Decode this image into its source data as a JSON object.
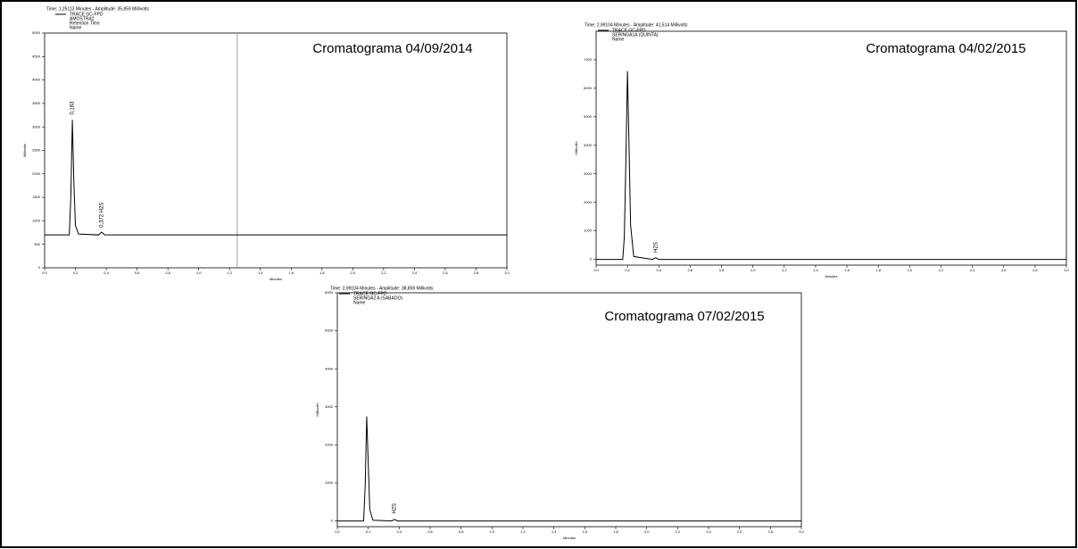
{
  "chart_data": [
    {
      "type": "line",
      "title": "Cromatograma 04/09/2014",
      "header": "Time: 1,25113 Minutes - Amplitude: 35,859 Millivolts",
      "legend_lines": [
        "AMOSTRA2",
        "Retention Time",
        "Name"
      ],
      "xlabel": "Minutes",
      "ylabel": "Millivolts",
      "series": [
        {
          "name": "TRACE GC-FPD",
          "color": "#000000",
          "x": [
            0.0,
            0.16,
            0.17,
            0.18,
            0.19,
            0.2,
            0.22,
            0.35,
            0.37,
            0.39,
            3.0
          ],
          "values": [
            700,
            700,
            1500,
            3150,
            1800,
            900,
            720,
            700,
            760,
            700,
            700
          ]
        }
      ],
      "annotations": [
        {
          "text": "0,183",
          "x": 0.18,
          "y": 3200
        },
        {
          "text": "0,372 H2S",
          "x": 0.37,
          "y": 800
        }
      ],
      "cursor": 1.25,
      "xlim": [
        0,
        3.0
      ],
      "ylim": [
        0,
        5000
      ],
      "xticks": [
        {
          "value": 0,
          "label": "0,0"
        },
        {
          "value": 0.2,
          "label": "0,2"
        },
        {
          "value": 0.4,
          "label": "0,4"
        },
        {
          "value": 0.6,
          "label": "0,6"
        },
        {
          "value": 0.8,
          "label": "0,8"
        },
        {
          "value": 1.0,
          "label": "1,0"
        },
        {
          "value": 1.2,
          "label": "1,2"
        },
        {
          "value": 1.4,
          "label": "1,4"
        },
        {
          "value": 1.6,
          "label": "1,6"
        },
        {
          "value": 1.8,
          "label": "1,8"
        },
        {
          "value": 2.0,
          "label": "2,0"
        },
        {
          "value": 2.2,
          "label": "2,2"
        },
        {
          "value": 2.4,
          "label": "2,4"
        },
        {
          "value": 2.6,
          "label": "2,6"
        },
        {
          "value": 2.8,
          "label": "2,8"
        },
        {
          "value": 3.0,
          "label": "3,0"
        }
      ],
      "yticks": [
        0,
        500,
        1000,
        1500,
        2000,
        2500,
        3000,
        3500,
        4000,
        4500,
        5000
      ]
    },
    {
      "type": "line",
      "title": "Cromatograma 04/02/2015",
      "header": "Time: 2,99104 Minutes - Amplitude: 41,514 Millivolts",
      "legend_lines": [
        "SERINGA1A (QUINTA)",
        "Name"
      ],
      "xlabel": "Minutes",
      "ylabel": "Millivolts",
      "series": [
        {
          "name": "TRACE GC-FPD",
          "color": "#000000",
          "x": [
            0.0,
            0.17,
            0.18,
            0.19,
            0.2,
            0.21,
            0.22,
            0.24,
            0.36,
            0.38,
            0.4,
            3.0
          ],
          "values": [
            0,
            0,
            800,
            3500,
            6600,
            4000,
            1200,
            100,
            0,
            60,
            0,
            0
          ]
        }
      ],
      "annotations": [
        {
          "text": "H2S",
          "x": 0.38,
          "y": 150
        }
      ],
      "xlim": [
        0,
        3.0
      ],
      "ylim": [
        -200,
        8000
      ],
      "xticks": [
        {
          "value": 0,
          "label": "0,0"
        },
        {
          "value": 0.2,
          "label": "0,2"
        },
        {
          "value": 0.4,
          "label": "0,4"
        },
        {
          "value": 0.6,
          "label": "0,6"
        },
        {
          "value": 0.8,
          "label": "0,8"
        },
        {
          "value": 1.0,
          "label": "1,0"
        },
        {
          "value": 1.2,
          "label": "1,2"
        },
        {
          "value": 1.4,
          "label": "1,4"
        },
        {
          "value": 1.6,
          "label": "1,6"
        },
        {
          "value": 1.8,
          "label": "1,8"
        },
        {
          "value": 2.0,
          "label": "2,0"
        },
        {
          "value": 2.2,
          "label": "2,2"
        },
        {
          "value": 2.4,
          "label": "2,4"
        },
        {
          "value": 2.6,
          "label": "2,6"
        },
        {
          "value": 2.8,
          "label": "2,8"
        },
        {
          "value": 3.0,
          "label": "3,0"
        }
      ],
      "yticks": [
        0,
        1000,
        2000,
        3000,
        4000,
        5000,
        6000,
        7000
      ]
    },
    {
      "type": "line",
      "title": "Cromatograma 07/02/2015",
      "header": "Time: 2,99104 Minutes - Amplitude: 38,859 Millivolts",
      "legend_lines": [
        "SERINGA2 A (SABADO)",
        "Name"
      ],
      "xlabel": "Minutes",
      "ylabel": "Millivolts",
      "series": [
        {
          "name": "TRACE GC-FPD",
          "color": "#000000",
          "x": [
            0.0,
            0.17,
            0.18,
            0.19,
            0.2,
            0.21,
            0.23,
            0.35,
            0.37,
            0.39,
            3.0
          ],
          "values": [
            0,
            0,
            900,
            2750,
            1500,
            300,
            20,
            0,
            40,
            0,
            0
          ]
        }
      ],
      "annotations": [
        {
          "text": "H2S",
          "x": 0.37,
          "y": 120
        }
      ],
      "xlim": [
        0,
        3.0
      ],
      "ylim": [
        -150,
        6000
      ],
      "xticks": [
        {
          "value": 0,
          "label": "0,0"
        },
        {
          "value": 0.2,
          "label": "0,2"
        },
        {
          "value": 0.4,
          "label": "0,4"
        },
        {
          "value": 0.6,
          "label": "0,6"
        },
        {
          "value": 0.8,
          "label": "0,8"
        },
        {
          "value": 1.0,
          "label": "1,0"
        },
        {
          "value": 1.2,
          "label": "1,2"
        },
        {
          "value": 1.4,
          "label": "1,4"
        },
        {
          "value": 1.6,
          "label": "1,6"
        },
        {
          "value": 1.8,
          "label": "1,8"
        },
        {
          "value": 2.0,
          "label": "2,0"
        },
        {
          "value": 2.2,
          "label": "2,2"
        },
        {
          "value": 2.4,
          "label": "2,4"
        },
        {
          "value": 2.6,
          "label": "2,6"
        },
        {
          "value": 2.8,
          "label": "2,8"
        },
        {
          "value": 3.0,
          "label": "3,0"
        }
      ],
      "yticks": [
        0,
        1000,
        2000,
        3000,
        4000,
        5000,
        6000
      ]
    }
  ]
}
